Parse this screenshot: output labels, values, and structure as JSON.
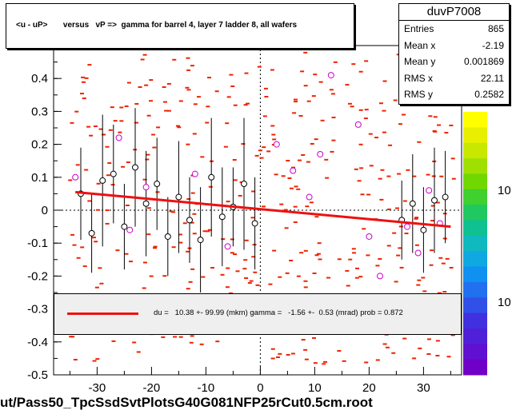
{
  "header": {
    "title": "<u - uP>       versus   vP =>  gamma for barrel 4, layer 7 ladder 8, all wafers"
  },
  "stats": {
    "name": "duvP7008",
    "rows": [
      {
        "label": "Entries",
        "value": "865"
      },
      {
        "label": "Mean x",
        "value": "-2.19"
      },
      {
        "label": "Mean y",
        "value": "0.001869"
      },
      {
        "label": "RMS x",
        "value": "22.11"
      },
      {
        "label": "RMS y",
        "value": "0.2582"
      }
    ]
  },
  "fit": {
    "text": "du =   10.38 +- 99.99 (mkm) gamma =   -1.56 +-  0.53 (mrad) prob = 0.872",
    "color": "#ee1010"
  },
  "footer": {
    "filename": "ut/Pass50_TpcSsdSvtPlotsG40G081NFP25rCut0.5cm.root"
  },
  "palette": {
    "labels": [
      "10",
      "10"
    ]
  },
  "chart_data": {
    "type": "scatter",
    "xlim": [
      -38,
      37
    ],
    "ylim": [
      -0.5,
      0.5
    ],
    "x_ticks": [
      -30,
      -20,
      -10,
      0,
      10,
      20,
      30
    ],
    "y_ticks": [
      -0.5,
      -0.4,
      -0.3,
      -0.2,
      -0.1,
      0,
      0.1,
      0.2,
      0.3,
      0.4
    ],
    "x_tick_labels": [
      "-30",
      "-20",
      "-10",
      "0",
      "10",
      "20",
      "30"
    ],
    "y_tick_labels": [
      "-0.5",
      "-0.4",
      "-0.3",
      "-0.2",
      "-0.1",
      "0",
      "0.1",
      "0.2",
      "0.3",
      "0.4"
    ],
    "fit_line": {
      "x": [
        -34,
        35
      ],
      "y": [
        0.055,
        -0.05
      ]
    },
    "colors": {
      "points": "#ee2200",
      "profile_black": "#000000",
      "profile_magenta": "#cc00cc",
      "fit": "#ee1010"
    },
    "profile_black": [
      {
        "x": -33,
        "y": 0.05,
        "err": 0.14
      },
      {
        "x": -31,
        "y": -0.07,
        "err": 0.12
      },
      {
        "x": -29,
        "y": 0.09,
        "err": 0.2
      },
      {
        "x": -27,
        "y": 0.11,
        "err": 0.15
      },
      {
        "x": -25,
        "y": -0.05,
        "err": 0.13
      },
      {
        "x": -23,
        "y": 0.13,
        "err": 0.18
      },
      {
        "x": -21,
        "y": 0.02,
        "err": 0.16
      },
      {
        "x": -19,
        "y": 0.08,
        "err": 0.14
      },
      {
        "x": -17,
        "y": -0.08,
        "err": 0.12
      },
      {
        "x": -15,
        "y": 0.04,
        "err": 0.17
      },
      {
        "x": -13,
        "y": -0.03,
        "err": 0.13
      },
      {
        "x": -11,
        "y": -0.09,
        "err": 0.16
      },
      {
        "x": -9,
        "y": 0.1,
        "err": 0.18
      },
      {
        "x": -7,
        "y": -0.02,
        "err": 0.15
      },
      {
        "x": -5,
        "y": 0.01,
        "err": 0.12
      },
      {
        "x": -3,
        "y": 0.08,
        "err": 0.2
      },
      {
        "x": -1,
        "y": -0.04,
        "err": 0.14
      },
      {
        "x": 26,
        "y": -0.03,
        "err": 0.12
      },
      {
        "x": 28,
        "y": 0.02,
        "err": 0.15
      },
      {
        "x": 30,
        "y": -0.06,
        "err": 0.13
      },
      {
        "x": 32,
        "y": 0.03,
        "err": 0.16
      },
      {
        "x": 34,
        "y": 0.04,
        "err": 0.14
      }
    ],
    "profile_magenta": [
      {
        "x": -34,
        "y": 0.1
      },
      {
        "x": -26,
        "y": 0.22
      },
      {
        "x": -24,
        "y": -0.06
      },
      {
        "x": -21,
        "y": 0.07
      },
      {
        "x": -12,
        "y": 0.11
      },
      {
        "x": -6,
        "y": -0.11
      },
      {
        "x": 3,
        "y": 0.2
      },
      {
        "x": 6,
        "y": 0.12
      },
      {
        "x": 9,
        "y": 0.04
      },
      {
        "x": 11,
        "y": 0.17
      },
      {
        "x": 13,
        "y": 0.41
      },
      {
        "x": 18,
        "y": 0.26
      },
      {
        "x": 20,
        "y": -0.08
      },
      {
        "x": 22,
        "y": -0.2
      },
      {
        "x": 27,
        "y": -0.05
      },
      {
        "x": 29,
        "y": -0.13
      },
      {
        "x": 31,
        "y": 0.06
      },
      {
        "x": 33,
        "y": -0.04
      }
    ]
  }
}
